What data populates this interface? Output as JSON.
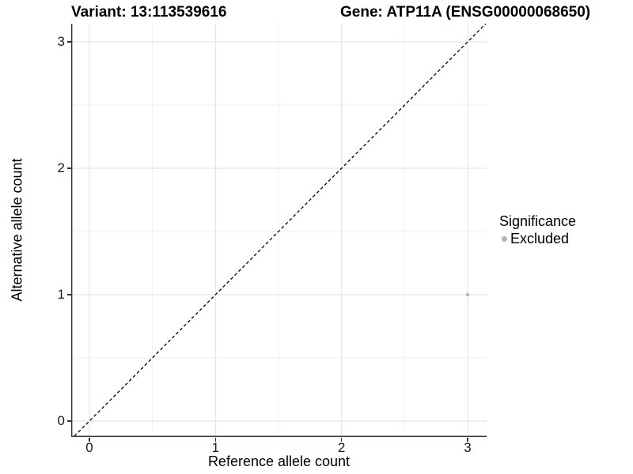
{
  "chart_data": {
    "type": "scatter",
    "title_left": "Variant: 13:113539616",
    "title_right": "Gene: ATP11A (ENSG00000068650)",
    "xlabel": "Reference allele count",
    "ylabel": "Alternative allele count",
    "x_ticks": [
      "0",
      "1",
      "2",
      "3"
    ],
    "y_ticks": [
      "0",
      "1",
      "2",
      "3"
    ],
    "xlim": [
      -0.15,
      3.15
    ],
    "ylim": [
      -0.15,
      3.15
    ],
    "grid": {
      "major": true,
      "minor": true
    },
    "identity_line": {
      "style": "dashed",
      "color": "#000000",
      "from": [
        -0.15,
        -0.15
      ],
      "to": [
        3.15,
        3.15
      ]
    },
    "points": [
      {
        "x": 3,
        "y": 1,
        "series": "Excluded"
      }
    ],
    "legend": {
      "title": "Significance",
      "position": "right",
      "items": [
        {
          "label": "Excluded",
          "color": "#b5b5b5"
        }
      ]
    },
    "colors": {
      "point_excluded": "#b5b5b5",
      "grid_major": "#e5e5e5",
      "grid_minor": "#f2f2f2",
      "axis_line": "#333333",
      "background": "#ffffff"
    }
  }
}
